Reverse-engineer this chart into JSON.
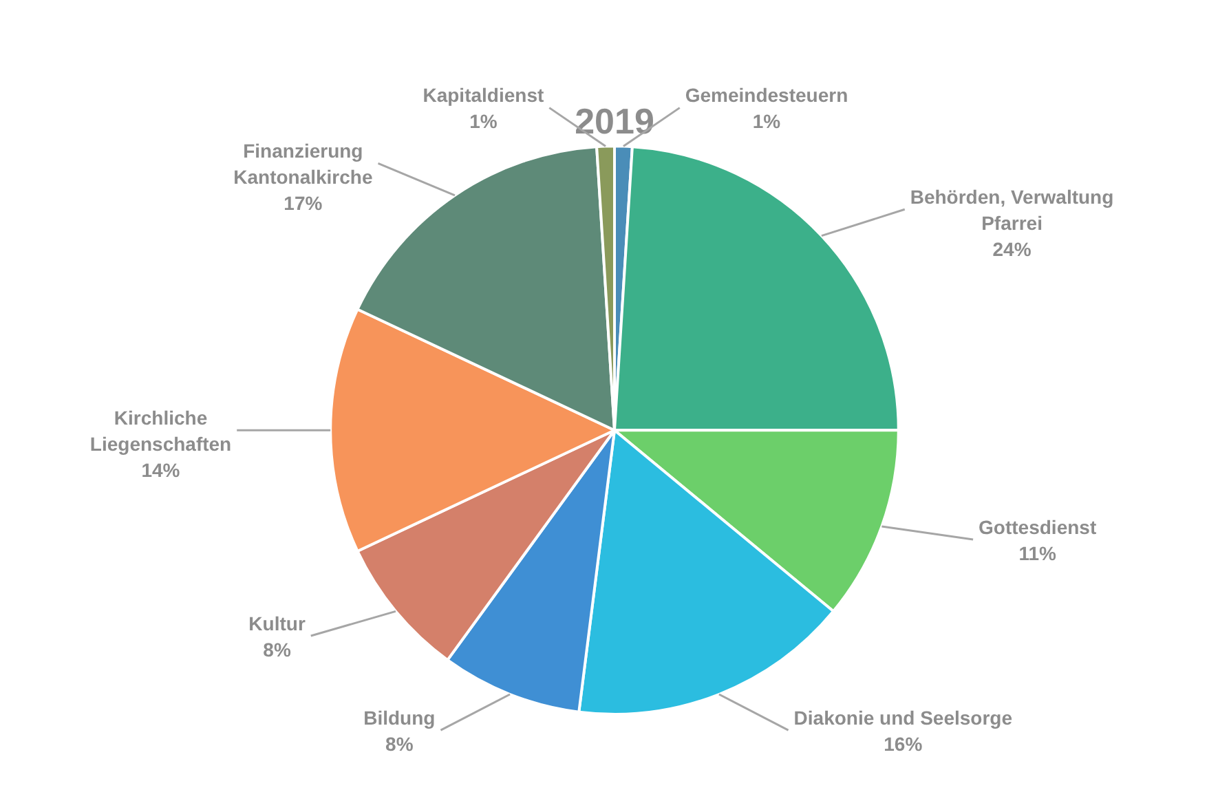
{
  "chart_data": {
    "type": "pie",
    "title": "2019",
    "categories": [
      "Gemeindesteuern",
      "Behörden, Verwaltung Pfarrei",
      "Gottesdienst",
      "Diakonie und Seelsorge",
      "Bildung",
      "Kultur",
      "Kirchliche Liegenschaften",
      "Finanzierung Kantonalkirche",
      "Kapitaldienst"
    ],
    "values": [
      1,
      24,
      11,
      16,
      8,
      8,
      14,
      17,
      1
    ],
    "value_labels": [
      "1%",
      "24%",
      "11%",
      "16%",
      "8%",
      "8%",
      "14%",
      "17%",
      "1%"
    ],
    "colors": [
      "#4a8db8",
      "#3cb08a",
      "#6ccf6a",
      "#2bbde0",
      "#3f8fd4",
      "#d4806a",
      "#f7945a",
      "#5e8a78",
      "#8a9a5b"
    ],
    "legend": false
  }
}
